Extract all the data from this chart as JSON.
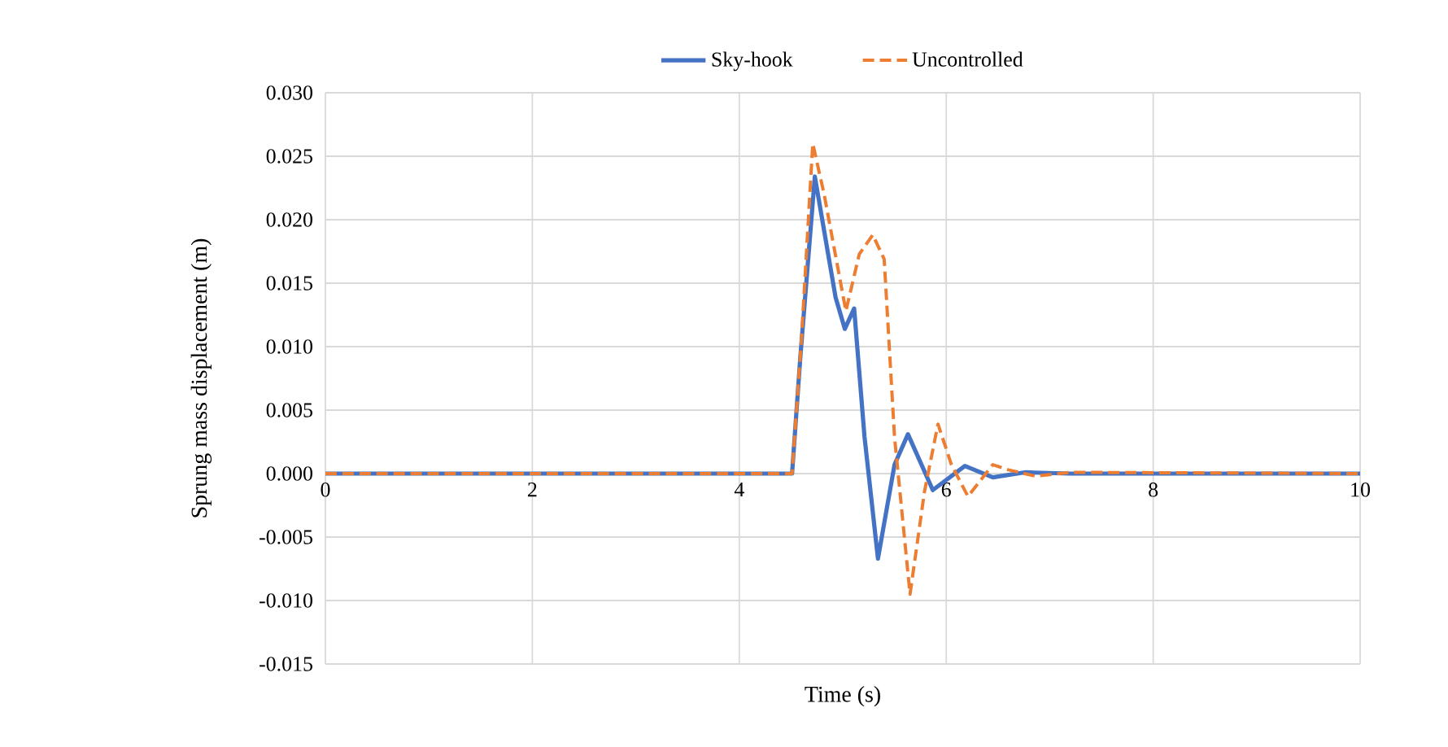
{
  "chart_data": {
    "type": "line",
    "xlabel": "Time (s)",
    "ylabel": "Sprung mass displacement (m)",
    "xlim": [
      0,
      10
    ],
    "xticks": [
      0,
      2,
      4,
      6,
      8,
      10
    ],
    "ylim": [
      -0.015,
      0.03
    ],
    "yticks": [
      {
        "value": -0.015,
        "label": "-0.015"
      },
      {
        "value": -0.01,
        "label": "-0.010"
      },
      {
        "value": -0.005,
        "label": "-0.005"
      },
      {
        "value": 0,
        "label": "0.000"
      },
      {
        "value": 0.005,
        "label": "0.005"
      },
      {
        "value": 0.01,
        "label": "0.010"
      },
      {
        "value": 0.015,
        "label": "0.015"
      },
      {
        "value": 0.02,
        "label": "0.020"
      },
      {
        "value": 0.025,
        "label": "0.025"
      },
      {
        "value": 0.03,
        "label": "0.030"
      }
    ],
    "grid": true,
    "legend": "top",
    "marker": "none",
    "series": [
      {
        "name": "Sky-hook",
        "color": "#4472c4",
        "line_style": "solid",
        "x": [
          0,
          4.51,
          4.59,
          4.73,
          4.93,
          5.02,
          5.11,
          5.21,
          5.34,
          5.5,
          5.63,
          5.87,
          6.18,
          6.45,
          6.76,
          7.2,
          10
        ],
        "values": [
          0,
          0,
          0.0092,
          0.0234,
          0.0139,
          0.0114,
          0.013,
          0.0029,
          -0.0067,
          0.0007,
          0.0031,
          -0.0013,
          0.0006,
          -0.0003,
          0.0001,
          0,
          0
        ]
      },
      {
        "name": "Uncontrolled",
        "color": "#ed7d31",
        "line_style": "dashed",
        "x": [
          0,
          4.51,
          4.6,
          4.71,
          4.82,
          5.03,
          5.16,
          5.29,
          5.4,
          5.5,
          5.65,
          5.79,
          5.92,
          6.05,
          6.21,
          6.45,
          6.6,
          6.86,
          7.2,
          10
        ],
        "values": [
          0,
          0,
          0.0105,
          0.026,
          0.022,
          0.0128,
          0.0173,
          0.0188,
          0.0169,
          0.0029,
          -0.0095,
          -0.0014,
          0.0039,
          0.0007,
          -0.0018,
          0.0007,
          0.0003,
          -0.0002,
          0.0001,
          0
        ]
      }
    ]
  }
}
